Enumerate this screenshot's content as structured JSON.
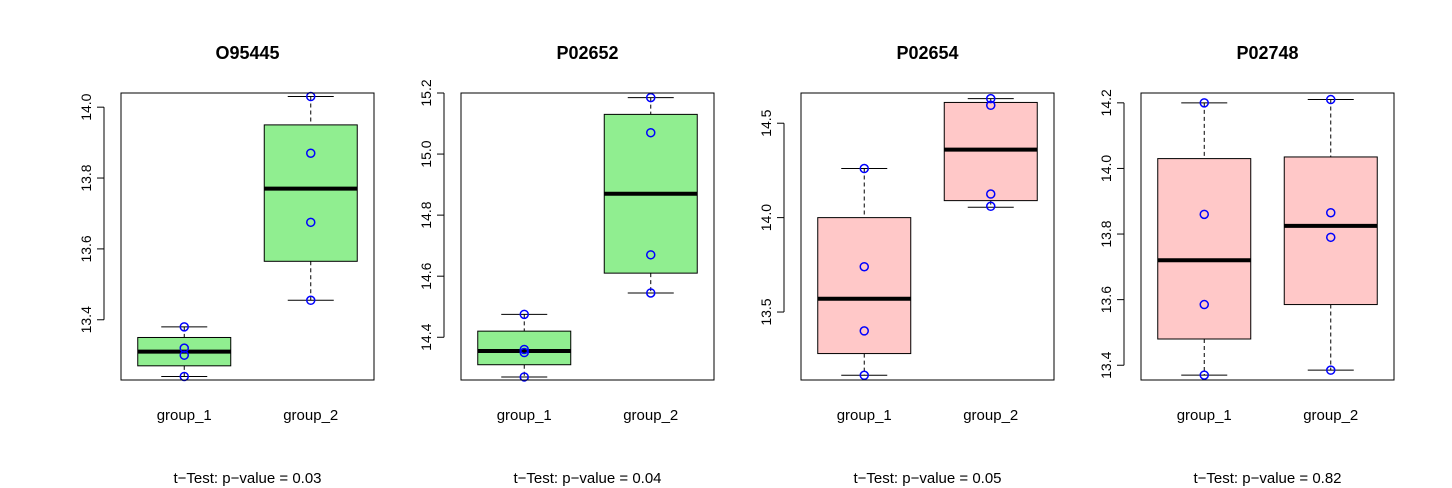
{
  "chart_data": [
    {
      "type": "box",
      "title": "O95445",
      "categories": [
        "group_1",
        "group_2"
      ],
      "ylim": [
        13.23,
        14.04
      ],
      "yticks": [
        "13.4",
        "13.6",
        "13.8",
        "14.0"
      ],
      "box_color": "#90EE90",
      "point_color": "#0000FF",
      "series": [
        {
          "name": "group_1",
          "min": 13.24,
          "q1": 13.27,
          "median": 13.31,
          "q3": 13.35,
          "max": 13.38,
          "points": [
            13.38,
            13.32,
            13.3,
            13.24
          ]
        },
        {
          "name": "group_2",
          "min": 13.455,
          "q1": 13.565,
          "median": 13.77,
          "q3": 13.95,
          "max": 14.03,
          "points": [
            14.03,
            13.87,
            13.675,
            13.455
          ]
        }
      ],
      "footer": "t−Test: p−value = 0.03"
    },
    {
      "type": "box",
      "title": "P02652",
      "categories": [
        "group_1",
        "group_2"
      ],
      "ylim": [
        14.26,
        15.2
      ],
      "yticks": [
        "14.4",
        "14.6",
        "14.8",
        "15.0",
        "15.2"
      ],
      "box_color": "#90EE90",
      "point_color": "#0000FF",
      "series": [
        {
          "name": "group_1",
          "min": 14.27,
          "q1": 14.31,
          "median": 14.355,
          "q3": 14.42,
          "max": 14.475,
          "points": [
            14.475,
            14.36,
            14.35,
            14.27
          ]
        },
        {
          "name": "group_2",
          "min": 14.545,
          "q1": 14.61,
          "median": 14.87,
          "q3": 15.13,
          "max": 15.185,
          "points": [
            15.185,
            15.07,
            14.67,
            14.545
          ]
        }
      ],
      "footer": "t−Test: p−value = 0.04"
    },
    {
      "type": "box",
      "title": "P02654",
      "categories": [
        "group_1",
        "group_2"
      ],
      "ylim": [
        13.14,
        14.66
      ],
      "yticks": [
        "13.5",
        "14.0",
        "14.5"
      ],
      "box_color": "#FFC8C8",
      "point_color": "#0000FF",
      "series": [
        {
          "name": "group_1",
          "min": 13.165,
          "q1": 13.28,
          "median": 13.57,
          "q3": 14.0,
          "max": 14.26,
          "points": [
            14.26,
            13.74,
            13.4,
            13.165
          ]
        },
        {
          "name": "group_2",
          "min": 14.055,
          "q1": 14.09,
          "median": 14.36,
          "q3": 14.61,
          "max": 14.63,
          "points": [
            14.63,
            14.595,
            14.125,
            14.06
          ]
        }
      ],
      "footer": "t−Test: p−value = 0.05"
    },
    {
      "type": "box",
      "title": "P02748",
      "categories": [
        "group_1",
        "group_2"
      ],
      "ylim": [
        13.355,
        14.23
      ],
      "yticks": [
        "13.4",
        "13.6",
        "13.8",
        "14.0",
        "14.2"
      ],
      "box_color": "#FFC8C8",
      "point_color": "#0000FF",
      "series": [
        {
          "name": "group_1",
          "min": 13.37,
          "q1": 13.48,
          "median": 13.72,
          "q3": 14.03,
          "max": 14.2,
          "points": [
            14.2,
            13.86,
            13.585,
            13.37
          ]
        },
        {
          "name": "group_2",
          "min": 13.385,
          "q1": 13.585,
          "median": 13.825,
          "q3": 14.035,
          "max": 14.21,
          "points": [
            14.21,
            13.865,
            13.79,
            13.385
          ]
        }
      ],
      "footer": "t−Test: p−value = 0.82"
    }
  ]
}
